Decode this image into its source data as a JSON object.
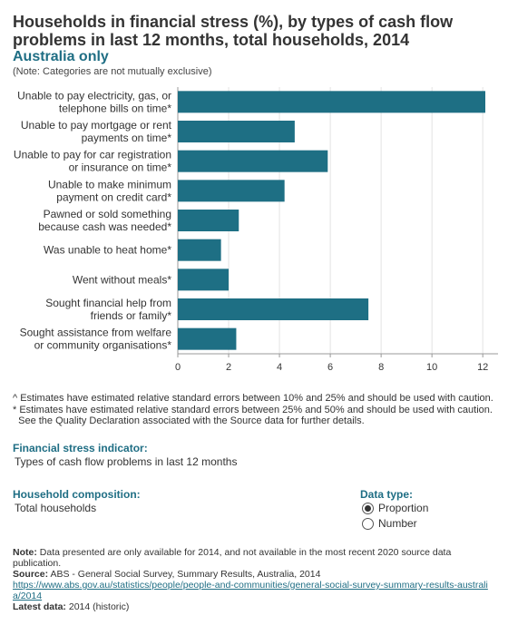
{
  "header": {
    "title": "Households in financial stress (%), by types of cash flow problems in last 12 months, total households, 2014",
    "subtitle": "Australia only",
    "note": "(Note: Categories are not mutually exclusive)"
  },
  "chart_data": {
    "type": "bar",
    "orientation": "horizontal",
    "categories": [
      [
        "Unable to pay electricity, gas, or",
        "telephone bills on time*"
      ],
      [
        "Unable to pay mortgage or rent",
        "payments on time*"
      ],
      [
        "Unable to pay for car registration",
        "or insurance on time*"
      ],
      [
        "Unable to make minimum",
        "payment on credit card*"
      ],
      [
        "Pawned or sold something",
        "because cash was needed*"
      ],
      [
        "Was unable to heat home*"
      ],
      [
        "Went without meals*"
      ],
      [
        "Sought financial help from",
        "friends or family*"
      ],
      [
        "Sought assistance from welfare",
        "or community organisations*"
      ]
    ],
    "values": [
      12.1,
      4.6,
      5.9,
      4.2,
      2.4,
      1.7,
      2.0,
      7.5,
      2.3
    ],
    "xlim": [
      0,
      12.6
    ],
    "xticks": [
      "0",
      "2",
      "4",
      "6",
      "8",
      "10",
      "12"
    ],
    "bar_color": "#1e6f84",
    "grid": true
  },
  "footnotes": [
    "^ Estimates have estimated relative standard errors between 10% and 25% and should be used with caution.",
    "* Estimates have estimated relative standard errors between 25% and 50% and should be used with caution.",
    "  See the Quality Declaration associated with the Source data for further details."
  ],
  "indicator": {
    "label": "Financial stress indicator:",
    "value": "Types of cash flow problems in last 12 months"
  },
  "household": {
    "label": "Household composition:",
    "value": "Total households"
  },
  "datatype": {
    "label": "Data type:",
    "options": [
      "Proportion",
      "Number"
    ],
    "selected": "Proportion"
  },
  "bottom": {
    "note_label": "Note:",
    "note_text": "Data presented are only available for 2014, and not available in the most recent 2020 source data publication.",
    "source_label": "Source:",
    "source_text": "ABS - General Social Survey, Summary Results, Australia, 2014",
    "url": "https://www.abs.gov.au/statistics/people/people-and-communities/general-social-survey-summary-results-australia/2014",
    "latest_label": "Latest data:",
    "latest_text": "2014 (historic)"
  }
}
